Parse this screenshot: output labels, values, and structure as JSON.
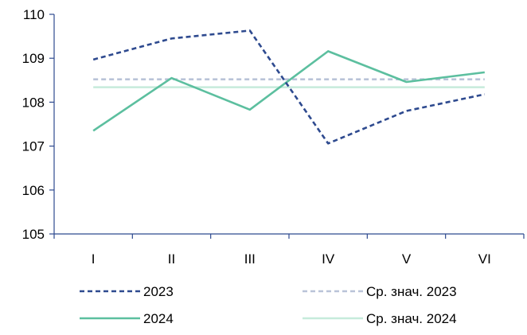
{
  "chart_data": {
    "type": "line",
    "title": "",
    "xlabel": "",
    "ylabel": "",
    "categories": [
      "I",
      "II",
      "III",
      "IV",
      "V",
      "VI"
    ],
    "ylim": [
      105,
      110
    ],
    "yticks": [
      105,
      106,
      107,
      108,
      109,
      110
    ],
    "grid": false,
    "legend_position": "bottom",
    "series": [
      {
        "name": "2023",
        "values": [
          108.97,
          109.45,
          109.63,
          107.06,
          107.8,
          108.18
        ],
        "color": "#2e4a8f",
        "dash": "dashed"
      },
      {
        "name": "2024",
        "values": [
          107.35,
          108.55,
          107.83,
          109.16,
          108.46,
          108.68
        ],
        "color": "#5cbf9f",
        "dash": "solid"
      },
      {
        "name": "Ср. знач. 2023",
        "values": [
          108.52,
          108.52,
          108.52,
          108.52,
          108.52,
          108.52
        ],
        "color": "#b9c3d8",
        "dash": "dashed"
      },
      {
        "name": "Ср. знач. 2024",
        "values": [
          108.34,
          108.34,
          108.34,
          108.34,
          108.34,
          108.34
        ],
        "color": "#c6ebdb",
        "dash": "solid"
      }
    ],
    "legend": [
      {
        "series": "2023",
        "label": "2023"
      },
      {
        "series": "Ср. знач. 2023",
        "label": "Ср. знач. 2023"
      },
      {
        "series": "2024",
        "label": "2024"
      },
      {
        "series": "Ср. знач. 2024",
        "label": "Ср. знач. 2024"
      }
    ]
  }
}
